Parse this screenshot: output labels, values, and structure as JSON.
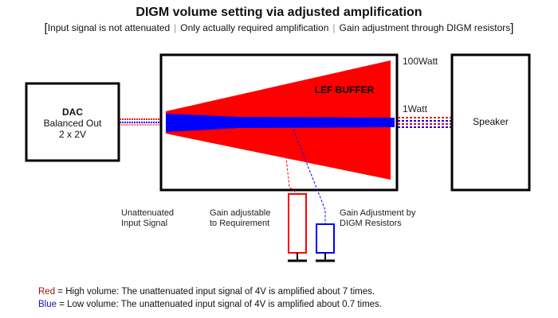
{
  "header": {
    "title": "DIGM volume setting via adjusted amplification",
    "subtitle_parts": [
      "Input signal is not attenuated",
      "Only actually required amplification",
      "Gain adjustment through DIGM resistors"
    ]
  },
  "dac": {
    "title": "DAC",
    "line1": "Balanced Out",
    "line2": "2 x 2V"
  },
  "buffer": {
    "label": "LEF BUFFER",
    "power_high": "100Watt",
    "power_low": "1Watt"
  },
  "speaker": {
    "label": "Speaker"
  },
  "annotations": {
    "unattenuated": [
      "Unattenuated",
      "Input Signal"
    ],
    "gain_adjustable": [
      "Gain adjustable",
      "to Requirement"
    ],
    "gain_adjustment": [
      "Gain Adjustment by",
      "DIGM Resistors"
    ]
  },
  "legend": [
    {
      "color_word": "Red",
      "text": " = High volume: The unattenuated input signal of 4V is amplified about 7 times."
    },
    {
      "color_word": "Blue",
      "text": " = Low volume: The unattenuated input signal of 4V is amplified about 0.7 times."
    }
  ],
  "colors": {
    "high": "#ff0000",
    "low": "#0000ff",
    "legend_red": "#a01010",
    "legend_blue": "#1010d0",
    "outline": "#000000"
  }
}
